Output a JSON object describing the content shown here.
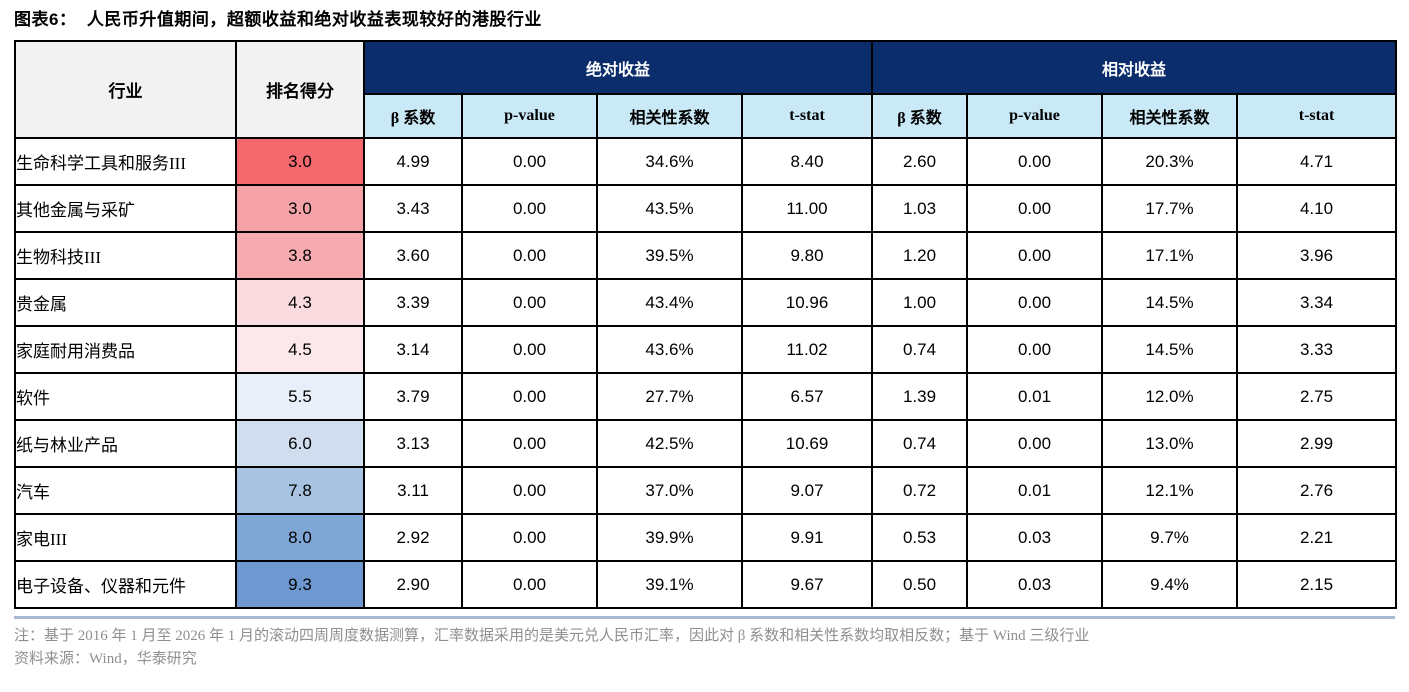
{
  "title": "图表6：  人民币升值期间，超额收益和绝对收益表现较好的港股行业",
  "colors": {
    "navy_header": "#0b2d6b",
    "sub_header_blue": "#c9e9f7",
    "header_gray": "#f2f2f2",
    "bottom_accent": "#a9b7cf",
    "note_gray": "#8f8f8f",
    "border": "#000000"
  },
  "table": {
    "headers": {
      "industry": "行业",
      "score": "排名得分",
      "group_absolute": "绝对收益",
      "group_relative": "相对收益",
      "sub": [
        "β 系数",
        "p-value",
        "相关性系数",
        "t-stat"
      ]
    },
    "rows": [
      {
        "industry": "生命科学工具和服务III",
        "score": "3.0",
        "score_color": "#f4696e",
        "abs": [
          "4.99",
          "0.00",
          "34.6%",
          "8.40"
        ],
        "rel": [
          "2.60",
          "0.00",
          "20.3%",
          "4.71"
        ]
      },
      {
        "industry": "其他金属与采矿",
        "score": "3.0",
        "score_color": "#f5a3a9",
        "abs": [
          "3.43",
          "0.00",
          "43.5%",
          "11.00"
        ],
        "rel": [
          "1.03",
          "0.00",
          "17.7%",
          "4.10"
        ]
      },
      {
        "industry": "生物科技III",
        "score": "3.8",
        "score_color": "#f6abb0",
        "abs": [
          "3.60",
          "0.00",
          "39.5%",
          "9.80"
        ],
        "rel": [
          "1.20",
          "0.00",
          "17.1%",
          "3.96"
        ]
      },
      {
        "industry": "贵金属",
        "score": "4.3",
        "score_color": "#fadbdf",
        "abs": [
          "3.39",
          "0.00",
          "43.4%",
          "10.96"
        ],
        "rel": [
          "1.00",
          "0.00",
          "14.5%",
          "3.34"
        ]
      },
      {
        "industry": "家庭耐用消费品",
        "score": "4.5",
        "score_color": "#fce8ea",
        "abs": [
          "3.14",
          "0.00",
          "43.6%",
          "11.02"
        ],
        "rel": [
          "0.74",
          "0.00",
          "14.5%",
          "3.33"
        ]
      },
      {
        "industry": "软件",
        "score": "5.5",
        "score_color": "#e9eff8",
        "abs": [
          "3.79",
          "0.00",
          "27.7%",
          "6.57"
        ],
        "rel": [
          "1.39",
          "0.01",
          "12.0%",
          "2.75"
        ]
      },
      {
        "industry": "纸与林业产品",
        "score": "6.0",
        "score_color": "#cfddef",
        "abs": [
          "3.13",
          "0.00",
          "42.5%",
          "10.69"
        ],
        "rel": [
          "0.74",
          "0.00",
          "13.0%",
          "2.99"
        ]
      },
      {
        "industry": "汽车",
        "score": "7.8",
        "score_color": "#a8c2e2",
        "abs": [
          "3.11",
          "0.00",
          "37.0%",
          "9.07"
        ],
        "rel": [
          "0.72",
          "0.01",
          "12.1%",
          "2.76"
        ]
      },
      {
        "industry": "家电III",
        "score": "8.0",
        "score_color": "#7fa7d6",
        "abs": [
          "2.92",
          "0.00",
          "39.9%",
          "9.91"
        ],
        "rel": [
          "0.53",
          "0.03",
          "9.7%",
          "2.21"
        ]
      },
      {
        "industry": "电子设备、仪器和元件",
        "score": "9.3",
        "score_color": "#6e99d0",
        "abs": [
          "2.90",
          "0.00",
          "39.1%",
          "9.67"
        ],
        "rel": [
          "0.50",
          "0.03",
          "9.4%",
          "2.15"
        ]
      }
    ]
  },
  "notes": {
    "line1": "注：基于 2016 年 1 月至 2026 年 1 月的滚动四周周度数据测算，汇率数据采用的是美元兑人民币汇率，因此对 β 系数和相关性系数均取相反数；基于 Wind 三级行业",
    "line2": "资料来源：Wind，华泰研究"
  }
}
